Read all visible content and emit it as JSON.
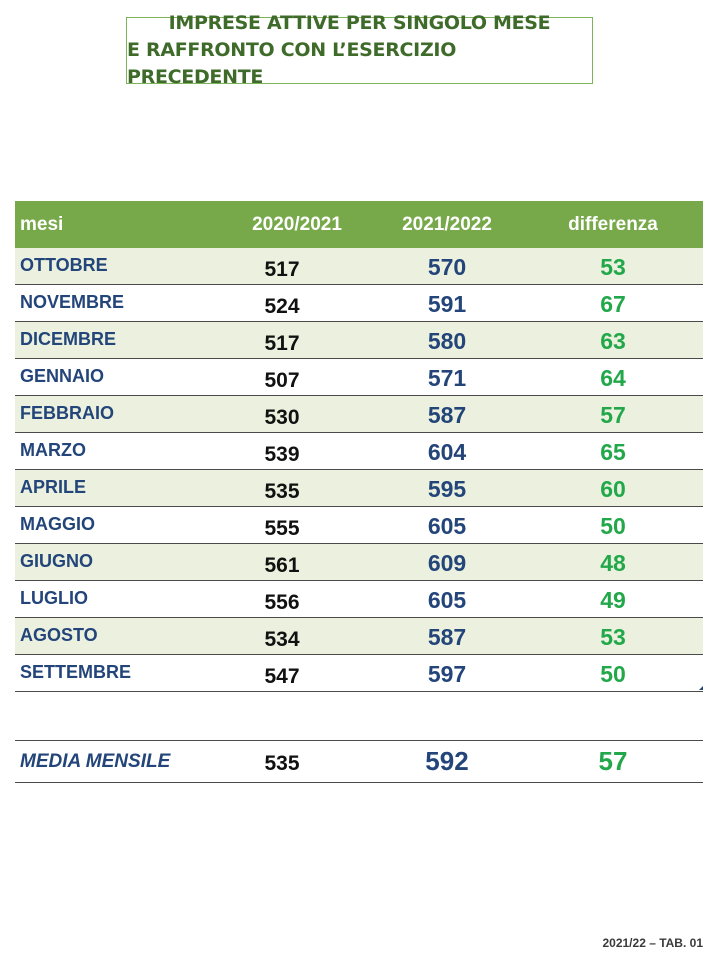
{
  "title": {
    "line1": "IMPRESE ATTIVE PER SINGOLO MESE",
    "line2": "E RAFFRONTO CON L’ESERCIZIO PRECEDENTE"
  },
  "table": {
    "headers": [
      "mesi",
      "2020/2021",
      "2021/2022",
      "differenza"
    ],
    "rows": [
      {
        "month": "OTTOBRE",
        "y2021": "517",
        "y2022": "570",
        "diff": "53"
      },
      {
        "month": "NOVEMBRE",
        "y2021": "524",
        "y2022": "591",
        "diff": "67"
      },
      {
        "month": "DICEMBRE",
        "y2021": "517",
        "y2022": "580",
        "diff": "63"
      },
      {
        "month": "GENNAIO",
        "y2021": "507",
        "y2022": "571",
        "diff": "64"
      },
      {
        "month": "FEBBRAIO",
        "y2021": "530",
        "y2022": "587",
        "diff": "57"
      },
      {
        "month": "MARZO",
        "y2021": "539",
        "y2022": "604",
        "diff": "65"
      },
      {
        "month": "APRILE",
        "y2021": "535",
        "y2022": "595",
        "diff": "60"
      },
      {
        "month": "MAGGIO",
        "y2021": "555",
        "y2022": "605",
        "diff": "50"
      },
      {
        "month": "GIUGNO",
        "y2021": "561",
        "y2022": "609",
        "diff": "48"
      },
      {
        "month": "LUGLIO",
        "y2021": "556",
        "y2022": "605",
        "diff": "49"
      },
      {
        "month": "AGOSTO",
        "y2021": "534",
        "y2022": "587",
        "diff": "53"
      },
      {
        "month": "SETTEMBRE",
        "y2021": "547",
        "y2022": "597",
        "diff": "50"
      }
    ]
  },
  "average": {
    "label": "MEDIA MENSILE",
    "y2021": "535",
    "y2022": "592",
    "diff": "57"
  },
  "footer": "2021/22 – TAB. 01",
  "colors": {
    "header_bg": "#77a94a",
    "row_shade": "#ebf1de",
    "month_text": "#23457a",
    "diff_text": "#22a84a",
    "title_text": "#3f6b2a"
  }
}
